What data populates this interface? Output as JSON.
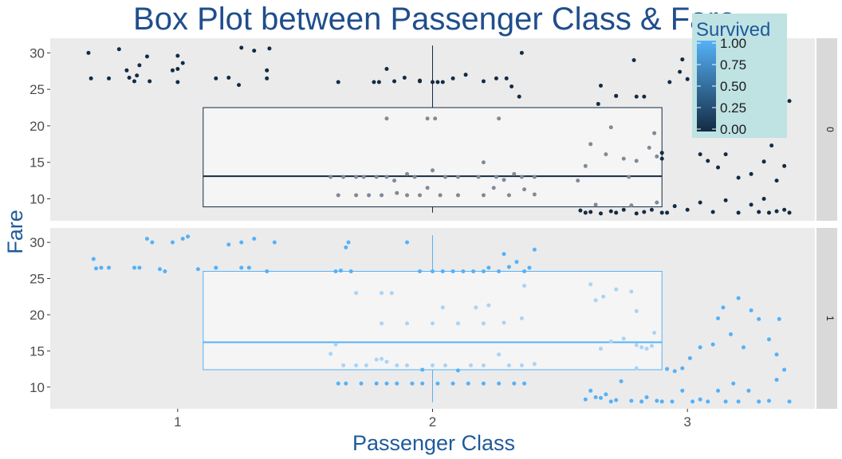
{
  "chart_data": {
    "type": "box",
    "title": "Box Plot between Passenger Class & Fare",
    "xlabel": "Passenger Class",
    "ylabel": "Fare",
    "xlim": [
      0.5,
      3.5
    ],
    "ylim": [
      7,
      32
    ],
    "x_ticks": [
      "1",
      "2",
      "3"
    ],
    "y_ticks": [
      "10",
      "15",
      "20",
      "25",
      "30"
    ],
    "grid": false,
    "legend": {
      "title": "Survived",
      "placement": "top-right",
      "ticks": [
        "1.00",
        "0.75",
        "0.50",
        "0.25",
        "0.00"
      ],
      "color_low": "#132b43",
      "color_high": "#56b1f7"
    },
    "panels": [
      {
        "strip_label": "0",
        "survived": 0,
        "box": {
          "x_range": [
            1.1,
            2.9
          ],
          "q1": 8.9,
          "median": 13.1,
          "q3": 22.5,
          "whisker_low": 8.1,
          "whisker_high": 31
        },
        "points": [
          [
            0.65,
            30
          ],
          [
            0.66,
            26.5
          ],
          [
            0.73,
            26.5
          ],
          [
            0.77,
            30.5
          ],
          [
            0.8,
            27.6
          ],
          [
            0.81,
            26.6
          ],
          [
            0.83,
            26.1
          ],
          [
            0.84,
            26.9
          ],
          [
            0.85,
            28.3
          ],
          [
            0.88,
            29.5
          ],
          [
            0.89,
            26.1
          ],
          [
            0.98,
            27.6
          ],
          [
            1.0,
            27.8
          ],
          [
            1.0,
            26
          ],
          [
            1.0,
            29.6
          ],
          [
            1.02,
            28.6
          ],
          [
            1.15,
            26.5
          ],
          [
            1.2,
            26.6
          ],
          [
            1.24,
            25.6
          ],
          [
            1.25,
            30.7
          ],
          [
            1.3,
            30.3
          ],
          [
            1.35,
            27.6
          ],
          [
            1.35,
            26.5
          ],
          [
            1.36,
            30.6
          ],
          [
            1.63,
            26
          ],
          [
            1.77,
            26
          ],
          [
            1.79,
            26
          ],
          [
            1.82,
            27.8
          ],
          [
            1.85,
            26.1
          ],
          [
            1.89,
            26.6
          ],
          [
            1.95,
            26.1
          ],
          [
            1.95,
            26.2
          ],
          [
            2.0,
            26
          ],
          [
            2.02,
            26
          ],
          [
            2.04,
            26
          ],
          [
            2.08,
            26.5
          ],
          [
            2.13,
            27
          ],
          [
            2.2,
            26.1
          ],
          [
            2.25,
            26.5
          ],
          [
            2.29,
            26.5
          ],
          [
            2.31,
            25.4
          ],
          [
            2.34,
            24
          ],
          [
            2.35,
            30
          ],
          [
            1.82,
            21
          ],
          [
            1.98,
            21
          ],
          [
            2.01,
            21
          ],
          [
            2.26,
            21
          ],
          [
            1.6,
            13
          ],
          [
            1.65,
            13
          ],
          [
            1.7,
            13
          ],
          [
            1.73,
            13
          ],
          [
            1.78,
            13
          ],
          [
            1.82,
            13
          ],
          [
            1.85,
            12.5
          ],
          [
            1.9,
            13.4
          ],
          [
            1.93,
            13
          ],
          [
            2.0,
            13.9
          ],
          [
            2.05,
            13
          ],
          [
            2.1,
            13
          ],
          [
            2.18,
            13
          ],
          [
            2.2,
            15
          ],
          [
            2.25,
            13
          ],
          [
            2.28,
            12.6
          ],
          [
            2.32,
            13.4
          ],
          [
            2.35,
            13
          ],
          [
            2.4,
            13
          ],
          [
            1.63,
            10.5
          ],
          [
            1.7,
            10.5
          ],
          [
            1.75,
            10.5
          ],
          [
            1.8,
            10.5
          ],
          [
            1.86,
            10.8
          ],
          [
            1.9,
            10.5
          ],
          [
            1.95,
            10.5
          ],
          [
            1.98,
            11.5
          ],
          [
            2.03,
            10.5
          ],
          [
            2.1,
            10.5
          ],
          [
            2.2,
            10.5
          ],
          [
            2.24,
            11.5
          ],
          [
            2.3,
            10.5
          ],
          [
            2.36,
            11.3
          ],
          [
            2.4,
            10.6
          ],
          [
            2.57,
            12.5
          ],
          [
            2.6,
            14.5
          ],
          [
            2.62,
            17.5
          ],
          [
            2.65,
            23
          ],
          [
            2.68,
            16.1
          ],
          [
            2.7,
            19.8
          ],
          [
            2.72,
            24.1
          ],
          [
            2.75,
            15.5
          ],
          [
            2.77,
            13
          ],
          [
            2.8,
            15.2
          ],
          [
            2.85,
            17
          ],
          [
            2.88,
            15.8
          ],
          [
            2.9,
            15.5
          ],
          [
            2.66,
            25.5
          ],
          [
            2.58,
            8.4
          ],
          [
            2.6,
            8.1
          ],
          [
            2.62,
            8.2
          ],
          [
            2.64,
            9.2
          ],
          [
            2.66,
            8
          ],
          [
            2.7,
            8.3
          ],
          [
            2.72,
            8.1
          ],
          [
            2.75,
            8.5
          ],
          [
            2.78,
            9.1
          ],
          [
            2.8,
            8
          ],
          [
            2.83,
            8.2
          ],
          [
            2.86,
            8.5
          ],
          [
            2.88,
            9.5
          ],
          [
            2.9,
            8.1
          ],
          [
            2.92,
            8.1
          ],
          [
            2.95,
            9
          ],
          [
            2.72,
            24.1
          ],
          [
            2.79,
            29
          ],
          [
            2.8,
            24
          ],
          [
            2.83,
            24
          ],
          [
            2.87,
            19
          ],
          [
            2.9,
            16.3
          ],
          [
            2.93,
            26
          ],
          [
            2.97,
            27.4
          ],
          [
            2.98,
            29.1
          ],
          [
            3.0,
            26.4
          ],
          [
            3.05,
            16.1
          ],
          [
            3.08,
            15.2
          ],
          [
            3.12,
            14.3
          ],
          [
            3.15,
            16.1
          ],
          [
            3.2,
            12.9
          ],
          [
            3.25,
            13.4
          ],
          [
            3.3,
            15.1
          ],
          [
            3.35,
            12.5
          ],
          [
            3.38,
            14.5
          ],
          [
            3.0,
            8.5
          ],
          [
            3.05,
            9.5
          ],
          [
            3.1,
            8.2
          ],
          [
            3.15,
            9.8
          ],
          [
            3.2,
            8.1
          ],
          [
            3.25,
            9.2
          ],
          [
            3.28,
            8.2
          ],
          [
            3.3,
            10
          ],
          [
            3.32,
            8.1
          ],
          [
            3.35,
            8.3
          ],
          [
            3.38,
            8.5
          ],
          [
            3.4,
            8.1
          ],
          [
            3.35,
            26
          ],
          [
            3.38,
            29
          ],
          [
            3.4,
            23.4
          ],
          [
            3.33,
            17.3
          ],
          [
            3.37,
            20.5
          ]
        ]
      },
      {
        "strip_label": "1",
        "survived": 1,
        "box": {
          "x_range": [
            1.1,
            2.9
          ],
          "q1": 12.4,
          "median": 16.2,
          "q3": 26,
          "whisker_low": 7.9,
          "whisker_high": 31
        },
        "points": [
          [
            0.67,
            27.7
          ],
          [
            0.68,
            26.4
          ],
          [
            0.7,
            26.5
          ],
          [
            0.73,
            26.5
          ],
          [
            0.83,
            26.5
          ],
          [
            0.85,
            26.5
          ],
          [
            0.88,
            30.5
          ],
          [
            0.9,
            30
          ],
          [
            0.93,
            26.3
          ],
          [
            0.95,
            26
          ],
          [
            0.98,
            30
          ],
          [
            1.02,
            30.5
          ],
          [
            1.04,
            30.8
          ],
          [
            1.08,
            26.3
          ],
          [
            1.15,
            26.5
          ],
          [
            1.2,
            29.7
          ],
          [
            1.25,
            26.5
          ],
          [
            1.25,
            30
          ],
          [
            1.28,
            26.5
          ],
          [
            1.3,
            30.5
          ],
          [
            1.35,
            26
          ],
          [
            1.38,
            30
          ],
          [
            1.62,
            26
          ],
          [
            1.64,
            26.1
          ],
          [
            1.66,
            29.3
          ],
          [
            1.67,
            30
          ],
          [
            1.68,
            26
          ],
          [
            1.7,
            23
          ],
          [
            1.8,
            23
          ],
          [
            1.84,
            23
          ],
          [
            1.9,
            30
          ],
          [
            1.95,
            26
          ],
          [
            2.0,
            26
          ],
          [
            2.04,
            26
          ],
          [
            2.08,
            26
          ],
          [
            2.12,
            26
          ],
          [
            2.16,
            26
          ],
          [
            2.2,
            26
          ],
          [
            2.22,
            26.5
          ],
          [
            2.26,
            26
          ],
          [
            2.28,
            28.4
          ],
          [
            2.3,
            26.6
          ],
          [
            2.33,
            27.3
          ],
          [
            2.36,
            26
          ],
          [
            2.38,
            26.5
          ],
          [
            2.4,
            29
          ],
          [
            2.36,
            24
          ],
          [
            1.8,
            18.8
          ],
          [
            1.9,
            18.8
          ],
          [
            2.0,
            18.8
          ],
          [
            2.04,
            21
          ],
          [
            2.1,
            18.8
          ],
          [
            2.17,
            21
          ],
          [
            2.2,
            18.8
          ],
          [
            2.22,
            21.3
          ],
          [
            2.28,
            18.9
          ],
          [
            2.35,
            19.5
          ],
          [
            1.6,
            14.6
          ],
          [
            1.62,
            15.9
          ],
          [
            1.65,
            13
          ],
          [
            1.7,
            13
          ],
          [
            1.74,
            13
          ],
          [
            1.78,
            13.8
          ],
          [
            1.8,
            13.9
          ],
          [
            1.82,
            13.5
          ],
          [
            1.86,
            13
          ],
          [
            1.9,
            13
          ],
          [
            1.96,
            12.4
          ],
          [
            2.0,
            13
          ],
          [
            2.05,
            13
          ],
          [
            2.1,
            12.3
          ],
          [
            2.15,
            13
          ],
          [
            2.2,
            13
          ],
          [
            2.26,
            14.5
          ],
          [
            2.3,
            13
          ],
          [
            2.35,
            13
          ],
          [
            2.4,
            13.2
          ],
          [
            1.63,
            10.5
          ],
          [
            1.66,
            10.5
          ],
          [
            1.72,
            10.5
          ],
          [
            1.78,
            10.5
          ],
          [
            1.82,
            10.5
          ],
          [
            1.86,
            10.5
          ],
          [
            1.92,
            10.5
          ],
          [
            1.96,
            10.5
          ],
          [
            2.02,
            10.5
          ],
          [
            2.08,
            10.5
          ],
          [
            2.14,
            10.5
          ],
          [
            2.2,
            10.5
          ],
          [
            2.26,
            10.5
          ],
          [
            2.32,
            10.5
          ],
          [
            2.36,
            10.5
          ],
          [
            2.62,
            24.2
          ],
          [
            2.64,
            22
          ],
          [
            2.67,
            22.5
          ],
          [
            2.7,
            16.3
          ],
          [
            2.72,
            23.5
          ],
          [
            2.75,
            16.7
          ],
          [
            2.8,
            20.5
          ],
          [
            2.82,
            15.5
          ],
          [
            2.84,
            15.3
          ],
          [
            2.87,
            17.5
          ],
          [
            2.66,
            15.3
          ],
          [
            2.78,
            23.2
          ],
          [
            2.8,
            15.8
          ],
          [
            2.86,
            15.7
          ],
          [
            2.6,
            8.3
          ],
          [
            2.62,
            9.5
          ],
          [
            2.64,
            8.6
          ],
          [
            2.66,
            8.5
          ],
          [
            2.68,
            9
          ],
          [
            2.7,
            8
          ],
          [
            2.72,
            8.2
          ],
          [
            2.74,
            10.8
          ],
          [
            2.78,
            8.1
          ],
          [
            2.8,
            12.6
          ],
          [
            2.82,
            8
          ],
          [
            2.84,
            8.6
          ],
          [
            2.88,
            8.1
          ],
          [
            2.9,
            8
          ],
          [
            2.92,
            12.5
          ],
          [
            2.94,
            8
          ],
          [
            2.95,
            12.2
          ],
          [
            2.98,
            12.6
          ],
          [
            3.01,
            14
          ],
          [
            3.05,
            15.5
          ],
          [
            3.1,
            15.9
          ],
          [
            3.12,
            19.5
          ],
          [
            3.14,
            21
          ],
          [
            3.17,
            17.3
          ],
          [
            3.2,
            22.3
          ],
          [
            3.22,
            15.5
          ],
          [
            3.25,
            20.6
          ],
          [
            3.28,
            19.4
          ],
          [
            3.32,
            16.6
          ],
          [
            3.36,
            19.4
          ],
          [
            3.38,
            12.4
          ],
          [
            3.35,
            14.5
          ],
          [
            2.98,
            9.5
          ],
          [
            3.02,
            8
          ],
          [
            3.05,
            8.3
          ],
          [
            3.08,
            8
          ],
          [
            3.12,
            9.5
          ],
          [
            3.15,
            8
          ],
          [
            3.18,
            10.5
          ],
          [
            3.2,
            8
          ],
          [
            3.24,
            9.5
          ],
          [
            3.28,
            8
          ],
          [
            3.32,
            8.1
          ],
          [
            3.35,
            11
          ],
          [
            3.4,
            8
          ]
        ]
      }
    ]
  }
}
